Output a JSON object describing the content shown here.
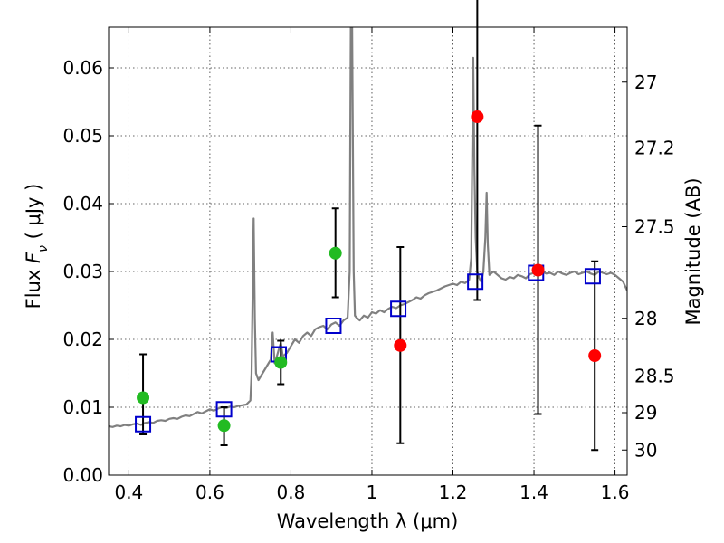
{
  "chart_data": {
    "type": "scatter",
    "xlabel": "Wavelength  λ (μm)",
    "ylabel": "Flux  F_ν  ( μJy )",
    "ylabel_parts": {
      "prefix": "Flux  ",
      "symbol": "F",
      "subscript": "ν",
      "unit": "  ( μJy )"
    },
    "y2label": "Magnitude (AB)",
    "xlim": [
      0.35,
      1.63
    ],
    "ylim": [
      0.0,
      0.066
    ],
    "x_ticks": [
      0.4,
      0.6,
      0.8,
      1.0,
      1.2,
      1.4,
      1.6
    ],
    "x_tick_labels": [
      "0.4",
      "0.6",
      "0.8",
      "1",
      "1.2",
      "1.4",
      "1.6"
    ],
    "y_ticks": [
      0.0,
      0.01,
      0.02,
      0.03,
      0.04,
      0.05,
      0.06
    ],
    "y_tick_labels": [
      "0.00",
      "0.01",
      "0.02",
      "0.03",
      "0.04",
      "0.05",
      "0.06"
    ],
    "y2_ticks": [
      {
        "label": "27",
        "flux": 0.0579
      },
      {
        "label": "27.2",
        "flux": 0.0482
      },
      {
        "label": "27.5",
        "flux": 0.0366
      },
      {
        "label": "28",
        "flux": 0.0231
      },
      {
        "label": "28.5",
        "flux": 0.0146
      },
      {
        "label": "29",
        "flux": 0.0092
      },
      {
        "label": "30",
        "flux": 0.0037
      }
    ],
    "grid": true,
    "colors": {
      "spectrum": "#808080",
      "model": "#0000cc",
      "detected": "#22bb22",
      "upper": "#ff0000",
      "errorbar": "#000000"
    },
    "spectrum": {
      "x": [
        0.35,
        0.36,
        0.37,
        0.38,
        0.39,
        0.4,
        0.41,
        0.42,
        0.43,
        0.44,
        0.45,
        0.46,
        0.47,
        0.48,
        0.49,
        0.5,
        0.51,
        0.52,
        0.53,
        0.54,
        0.55,
        0.56,
        0.57,
        0.58,
        0.59,
        0.6,
        0.61,
        0.62,
        0.63,
        0.64,
        0.65,
        0.66,
        0.67,
        0.68,
        0.69,
        0.7,
        0.703,
        0.708,
        0.711,
        0.714,
        0.72,
        0.73,
        0.74,
        0.75,
        0.755,
        0.76,
        0.763,
        0.77,
        0.775,
        0.78,
        0.79,
        0.8,
        0.81,
        0.82,
        0.83,
        0.84,
        0.85,
        0.86,
        0.87,
        0.88,
        0.89,
        0.9,
        0.91,
        0.92,
        0.93,
        0.94,
        0.945,
        0.948,
        0.951,
        0.955,
        0.958,
        0.962,
        0.97,
        0.98,
        0.99,
        1.0,
        1.01,
        1.02,
        1.03,
        1.04,
        1.05,
        1.06,
        1.07,
        1.08,
        1.09,
        1.1,
        1.11,
        1.12,
        1.13,
        1.14,
        1.15,
        1.16,
        1.17,
        1.18,
        1.19,
        1.2,
        1.21,
        1.22,
        1.23,
        1.24,
        1.245,
        1.25,
        1.253,
        1.256,
        1.26,
        1.265,
        1.27,
        1.275,
        1.28,
        1.283,
        1.286,
        1.29,
        1.3,
        1.31,
        1.32,
        1.33,
        1.34,
        1.35,
        1.36,
        1.37,
        1.38,
        1.39,
        1.4,
        1.41,
        1.42,
        1.43,
        1.44,
        1.45,
        1.46,
        1.47,
        1.48,
        1.49,
        1.5,
        1.51,
        1.52,
        1.53,
        1.54,
        1.55,
        1.56,
        1.57,
        1.58,
        1.59,
        1.6,
        1.61,
        1.62,
        1.63
      ],
      "y": [
        0.0072,
        0.0071,
        0.0073,
        0.0072,
        0.0074,
        0.0073,
        0.0075,
        0.0076,
        0.0074,
        0.0077,
        0.0078,
        0.0077,
        0.008,
        0.0081,
        0.008,
        0.0083,
        0.0084,
        0.0083,
        0.0086,
        0.0088,
        0.0087,
        0.009,
        0.0093,
        0.0091,
        0.0094,
        0.0097,
        0.0095,
        0.0098,
        0.01,
        0.0099,
        0.0101,
        0.01,
        0.0102,
        0.0103,
        0.0104,
        0.011,
        0.015,
        0.0378,
        0.023,
        0.015,
        0.014,
        0.015,
        0.016,
        0.017,
        0.021,
        0.0165,
        0.017,
        0.0185,
        0.0195,
        0.0175,
        0.018,
        0.019,
        0.02,
        0.0195,
        0.0205,
        0.021,
        0.0205,
        0.0215,
        0.0218,
        0.022,
        0.0215,
        0.0222,
        0.0225,
        0.022,
        0.0228,
        0.0232,
        0.03,
        0.068,
        0.068,
        0.03,
        0.0235,
        0.0232,
        0.0228,
        0.0235,
        0.0232,
        0.024,
        0.0238,
        0.0243,
        0.024,
        0.0245,
        0.0248,
        0.0246,
        0.025,
        0.0252,
        0.0255,
        0.0258,
        0.0262,
        0.026,
        0.0265,
        0.0268,
        0.027,
        0.0272,
        0.0275,
        0.0278,
        0.028,
        0.0282,
        0.028,
        0.0285,
        0.0283,
        0.0288,
        0.032,
        0.0615,
        0.045,
        0.035,
        0.03,
        0.029,
        0.0285,
        0.03,
        0.035,
        0.0416,
        0.034,
        0.0295,
        0.03,
        0.0295,
        0.029,
        0.0288,
        0.0292,
        0.029,
        0.0295,
        0.0293,
        0.029,
        0.0296,
        0.0298,
        0.0295,
        0.03,
        0.0297,
        0.0298,
        0.0295,
        0.03,
        0.0297,
        0.0295,
        0.0298,
        0.03,
        0.0296,
        0.0298,
        0.03,
        0.0297,
        0.0295,
        0.03,
        0.0298,
        0.0296,
        0.0298,
        0.0295,
        0.029,
        0.0285,
        0.0272
      ]
    },
    "model_points": [
      {
        "x": 0.435,
        "y": 0.0075
      },
      {
        "x": 0.635,
        "y": 0.0097
      },
      {
        "x": 0.77,
        "y": 0.0178
      },
      {
        "x": 0.905,
        "y": 0.022
      },
      {
        "x": 1.065,
        "y": 0.0245
      },
      {
        "x": 1.255,
        "y": 0.0285
      },
      {
        "x": 1.405,
        "y": 0.0298
      },
      {
        "x": 1.545,
        "y": 0.0293
      }
    ],
    "detected_points": [
      {
        "x": 0.435,
        "y": 0.0114,
        "err_low": 0.006,
        "err_high": 0.0178
      },
      {
        "x": 0.635,
        "y": 0.0073,
        "err_low": 0.0044,
        "err_high": 0.01
      },
      {
        "x": 0.775,
        "y": 0.0166,
        "err_low": 0.0134,
        "err_high": 0.0198
      },
      {
        "x": 0.91,
        "y": 0.0327,
        "err_low": 0.0262,
        "err_high": 0.0393
      }
    ],
    "upper_points": [
      {
        "x": 1.07,
        "y": 0.0191,
        "err_low": 0.0047,
        "err_high": 0.0336
      },
      {
        "x": 1.26,
        "y": 0.0528,
        "err_low": 0.0258,
        "err_high": 0.07
      },
      {
        "x": 1.41,
        "y": 0.0302,
        "err_low": 0.009,
        "err_high": 0.0515
      },
      {
        "x": 1.55,
        "y": 0.0176,
        "err_low": 0.0037,
        "err_high": 0.0315
      }
    ]
  }
}
